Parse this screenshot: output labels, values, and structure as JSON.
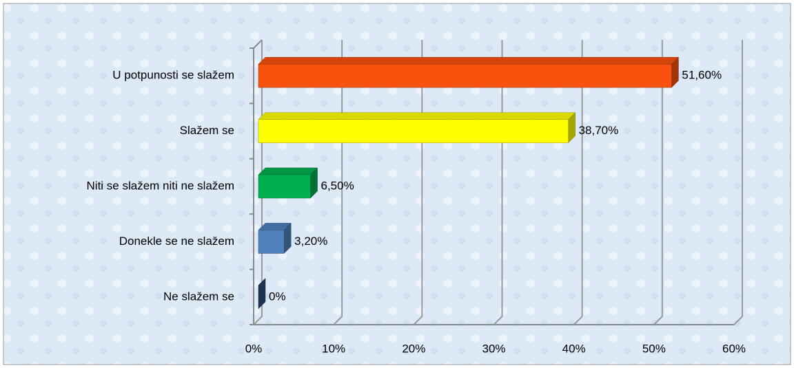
{
  "chart_data": {
    "type": "bar",
    "orientation": "horizontal",
    "categories": [
      "U potpunosti se slažem",
      "Slažem se",
      "Niti se slažem niti ne slažem",
      "Donekle se ne slažem",
      "Ne slažem se"
    ],
    "values": [
      51.6,
      38.7,
      6.5,
      3.2,
      0
    ],
    "value_labels": [
      "51,60%",
      "38,70%",
      "6,50%",
      "3,20%",
      "0%"
    ],
    "colors": [
      "#f9520e",
      "#ffff00",
      "#00b050",
      "#4f81bd",
      "#2e4f7e"
    ],
    "xlim": [
      0,
      60
    ],
    "xticks": [
      {
        "value": 0,
        "label": "0%"
      },
      {
        "value": 10,
        "label": "10%"
      },
      {
        "value": 20,
        "label": "20%"
      },
      {
        "value": 30,
        "label": "30%"
      },
      {
        "value": 40,
        "label": "40%"
      },
      {
        "value": 50,
        "label": "50%"
      },
      {
        "value": 60,
        "label": "60%"
      }
    ],
    "grid": true
  }
}
